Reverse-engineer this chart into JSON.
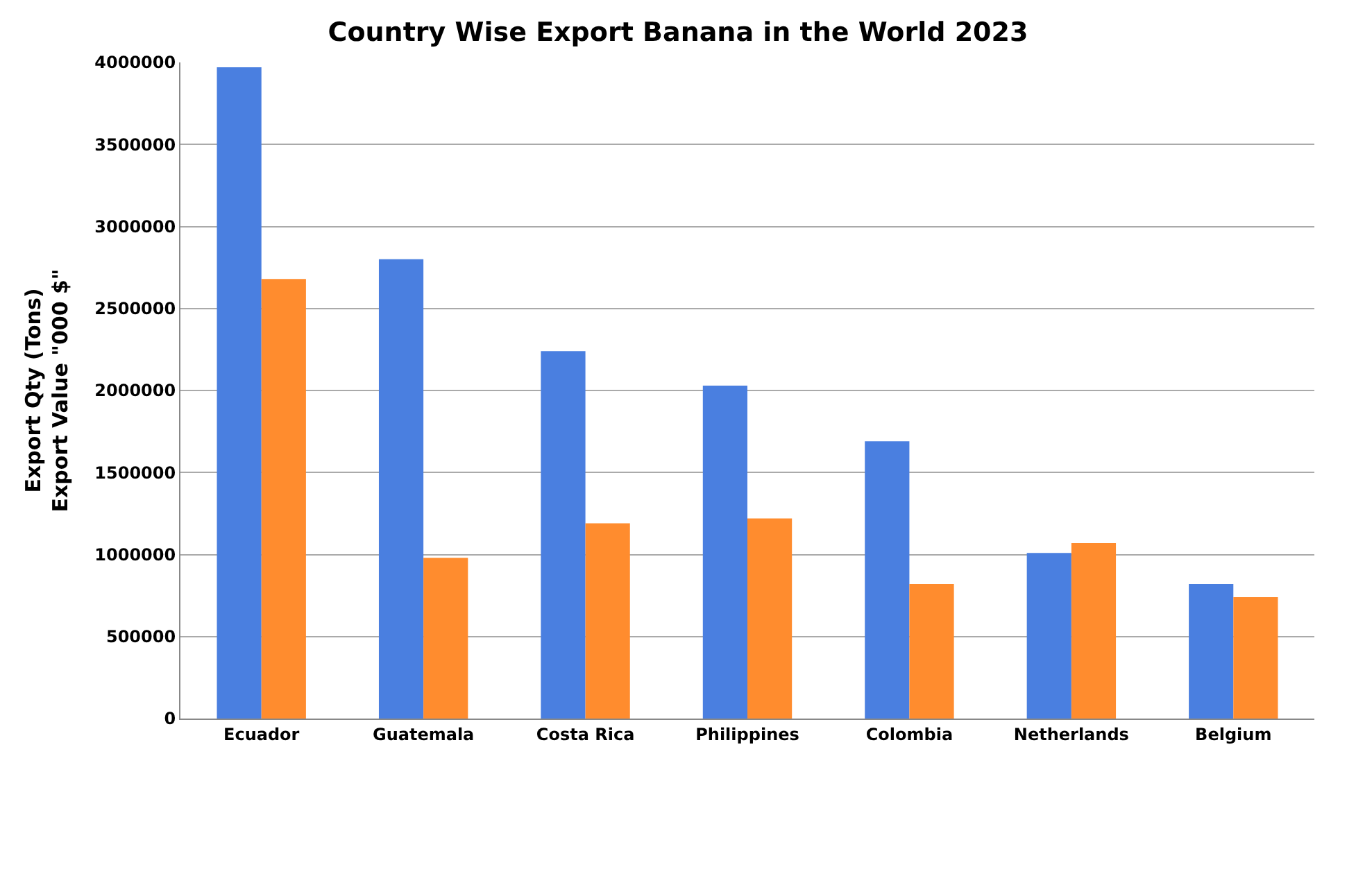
{
  "chart_data": {
    "type": "bar",
    "title": "Country Wise Export Banana in the World 2023",
    "ylabel": "Export Qty (Tons)\nExport Value \"000 $\"",
    "categories": [
      "Ecuador",
      "Guatemala",
      "Costa Rica",
      "Philippines",
      "Colombia",
      "Netherlands",
      "Belgium"
    ],
    "series": [
      {
        "color": "#4a7fe0",
        "values": [
          3970000,
          2800000,
          2240000,
          2030000,
          1690000,
          1010000,
          820000
        ]
      },
      {
        "color": "#ff8c2e",
        "values": [
          2680000,
          980000,
          1190000,
          1220000,
          820000,
          1070000,
          740000
        ]
      }
    ],
    "ylim": [
      0,
      4000000
    ],
    "yticks": [
      0,
      500000,
      1000000,
      1500000,
      2000000,
      2500000,
      3000000,
      3500000,
      4000000
    ],
    "grid": "y"
  }
}
